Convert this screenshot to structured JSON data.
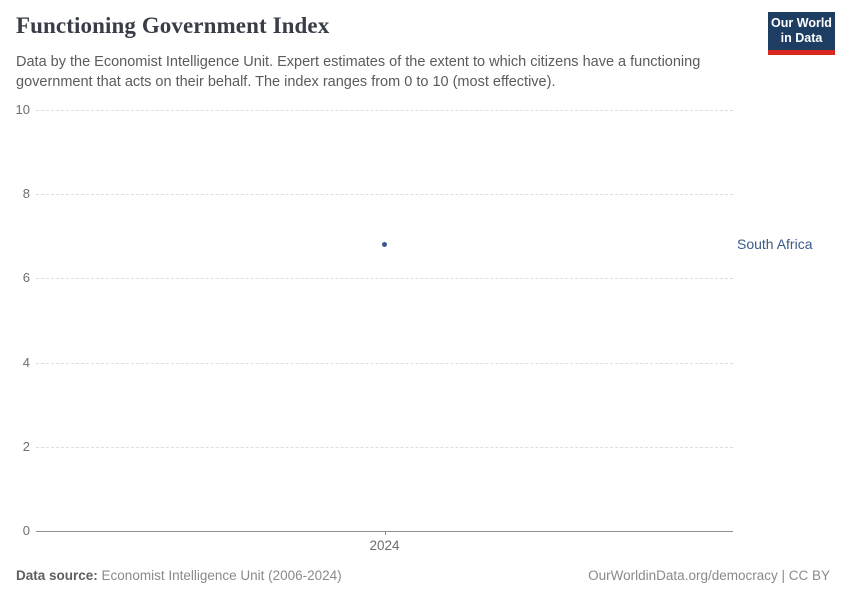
{
  "header": {
    "title": "Functioning Government Index",
    "subtitle": "Data by the Economist Intelligence Unit. Expert estimates of the extent to which citizens have a functioning government that acts on their behalf. The index ranges from 0 to 10 (most effective).",
    "logo": {
      "name": "owid-logo",
      "line1": "Our World",
      "line2": "in Data",
      "bg_color": "#1d3d63",
      "accent_color": "#d6281e"
    }
  },
  "chart_data": {
    "type": "scatter",
    "title": "Functioning Government Index",
    "xlabel": "",
    "ylabel": "",
    "ylim": [
      0,
      10
    ],
    "yticks": [
      0,
      2,
      4,
      6,
      8,
      10
    ],
    "xticks": [
      "2024"
    ],
    "grid": true,
    "gridline_color": "#dedede",
    "axis_color": "#8f8f8f",
    "tick_label_color": "#6e6e6e",
    "series": [
      {
        "name": "South Africa",
        "color": "#3d5a8c",
        "points": [
          {
            "x": 2024,
            "y": 6.8
          }
        ]
      }
    ]
  },
  "footer": {
    "source_label": "Data source:",
    "source_text": "Economist Intelligence Unit (2006-2024)",
    "credit": "OurWorldinData.org/democracy | CC BY"
  }
}
